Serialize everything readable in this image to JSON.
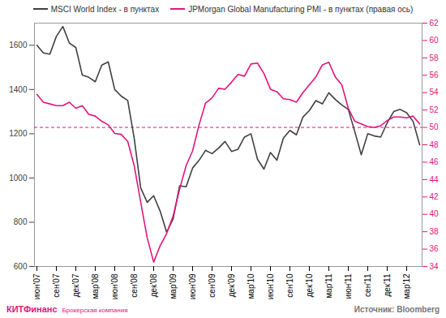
{
  "chart_data": {
    "type": "line",
    "categories": [
      "июн'07",
      null,
      null,
      "сен'07",
      null,
      null,
      "дек'07",
      null,
      null,
      "мар'08",
      null,
      null,
      "июн'08",
      null,
      null,
      "сен'08",
      null,
      null,
      "дек'08",
      null,
      null,
      "мар'09",
      null,
      null,
      "июн'09",
      null,
      null,
      "сен'09",
      null,
      null,
      "дек'09",
      null,
      null,
      "мар'10",
      null,
      null,
      "июн'10",
      null,
      null,
      "сен'10",
      null,
      null,
      "дек'10",
      null,
      null,
      "мар'11",
      null,
      null,
      "июн'11",
      null,
      null,
      "сен'11",
      null,
      null,
      "дек'11",
      null,
      null,
      "мар'12",
      null,
      null
    ],
    "series": [
      {
        "name": "MSCI World Index - в пунктах",
        "color": "#404040",
        "values": [
          1600,
          1565,
          1560,
          1640,
          1685,
          1610,
          1590,
          1465,
          1455,
          1435,
          1510,
          1525,
          1400,
          1370,
          1350,
          1180,
          955,
          890,
          920,
          850,
          755,
          815,
          965,
          960,
          1045,
          1080,
          1125,
          1110,
          1135,
          1165,
          1120,
          1130,
          1185,
          1200,
          1085,
          1040,
          1115,
          1080,
          1180,
          1215,
          1195,
          1275,
          1305,
          1350,
          1335,
          1385,
          1355,
          1330,
          1310,
          1210,
          1105,
          1200,
          1190,
          1185,
          1250,
          1300,
          1310,
          1295,
          1255,
          1150
        ]
      },
      {
        "name": "JPMorgan Global Manufacturing PMI - в пунктах (правая ось)",
        "color": "#e0157c",
        "axis": "y2",
        "values": [
          53.8,
          52.9,
          52.7,
          52.5,
          52.5,
          52.9,
          52.2,
          52.5,
          51.5,
          51.3,
          50.7,
          50.3,
          49.3,
          49.2,
          48.4,
          45.6,
          41.4,
          37.3,
          34.5,
          36.4,
          37.8,
          39.8,
          42.9,
          45.6,
          47.3,
          50.3,
          52.8,
          53.4,
          54.5,
          54.4,
          55.2,
          56.1,
          55.9,
          57.3,
          57.4,
          56.2,
          54.4,
          54.1,
          53.3,
          53.2,
          52.9,
          54.0,
          54.9,
          55.8,
          57.2,
          57.5,
          55.8,
          54.9,
          52.2,
          50.7,
          50.4,
          50.1,
          50.0,
          50.2,
          50.8,
          51.2,
          51.2,
          51.1,
          51.3,
          50.4
        ]
      }
    ],
    "ylim": [
      600,
      1700
    ],
    "yticks": [
      600,
      800,
      1000,
      1200,
      1400,
      1600
    ],
    "y2lim": [
      34,
      62
    ],
    "y2ticks": [
      34,
      36,
      38,
      40,
      42,
      44,
      46,
      48,
      50,
      52,
      54,
      56,
      58,
      60,
      62
    ],
    "hlines": [
      {
        "value": 50,
        "axis": "y2",
        "color": "#e0157c",
        "line_style": "dashed"
      }
    ],
    "grid": false,
    "legend": "top",
    "source": "Источник: Bloomberg",
    "logo": {
      "name": "КИТФинанс",
      "tagline": "Брокерская компания"
    }
  }
}
